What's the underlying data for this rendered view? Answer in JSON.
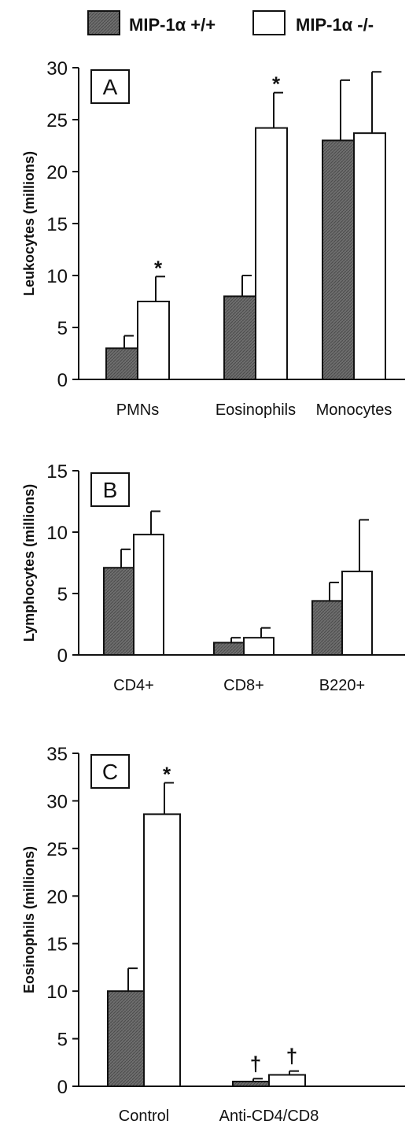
{
  "legend": {
    "items": [
      {
        "label": "MIP-1α +/+",
        "fill": "#6e6e6e"
      },
      {
        "label": "MIP-1α -/-",
        "fill": "#ffffff"
      }
    ]
  },
  "chart_data": [
    {
      "type": "bar",
      "panel": "A",
      "ylabel": "Leukocytes (millions)",
      "ylim": [
        0,
        30
      ],
      "yticks": [
        "0",
        "5",
        "10",
        "15",
        "20",
        "25",
        "30"
      ],
      "categories": [
        "PMNs",
        "Eosinophils",
        "Monocytes"
      ],
      "series": [
        {
          "name": "MIP-1α +/+",
          "values": [
            3.0,
            8.0,
            23.0
          ],
          "errors": [
            1.2,
            2.0,
            5.8
          ]
        },
        {
          "name": "MIP-1α -/-",
          "values": [
            7.5,
            24.2,
            23.7
          ],
          "errors": [
            2.4,
            3.4,
            5.9
          ]
        }
      ],
      "annotations": [
        {
          "category": 0,
          "series": 1,
          "text": "*"
        },
        {
          "category": 1,
          "series": 1,
          "text": "*"
        }
      ]
    },
    {
      "type": "bar",
      "panel": "B",
      "ylabel": "Lymphocytes (millions)",
      "ylim": [
        0,
        15
      ],
      "yticks": [
        "0",
        "5",
        "10",
        "15"
      ],
      "categories": [
        "CD4+",
        "CD8+",
        "B220+"
      ],
      "series": [
        {
          "name": "MIP-1α +/+",
          "values": [
            7.1,
            1.0,
            4.4
          ],
          "errors": [
            1.5,
            0.4,
            1.5
          ]
        },
        {
          "name": "MIP-1α -/-",
          "values": [
            9.8,
            1.4,
            6.8
          ],
          "errors": [
            1.9,
            0.8,
            4.2
          ]
        }
      ],
      "annotations": []
    },
    {
      "type": "bar",
      "panel": "C",
      "ylabel": "Eosinophils (millions)",
      "ylim": [
        0,
        35
      ],
      "yticks": [
        "0",
        "5",
        "10",
        "15",
        "20",
        "25",
        "30",
        "35"
      ],
      "categories": [
        "Control",
        "Anti-CD4/CD8"
      ],
      "series": [
        {
          "name": "MIP-1α +/+",
          "values": [
            10.0,
            0.5
          ],
          "errors": [
            2.4,
            0.3
          ]
        },
        {
          "name": "MIP-1α -/-",
          "values": [
            28.6,
            1.2
          ],
          "errors": [
            3.3,
            0.4
          ]
        }
      ],
      "annotations": [
        {
          "category": 0,
          "series": 1,
          "text": "*"
        },
        {
          "category": 1,
          "series": 0,
          "text": "†"
        },
        {
          "category": 1,
          "series": 1,
          "text": "†"
        }
      ]
    }
  ]
}
